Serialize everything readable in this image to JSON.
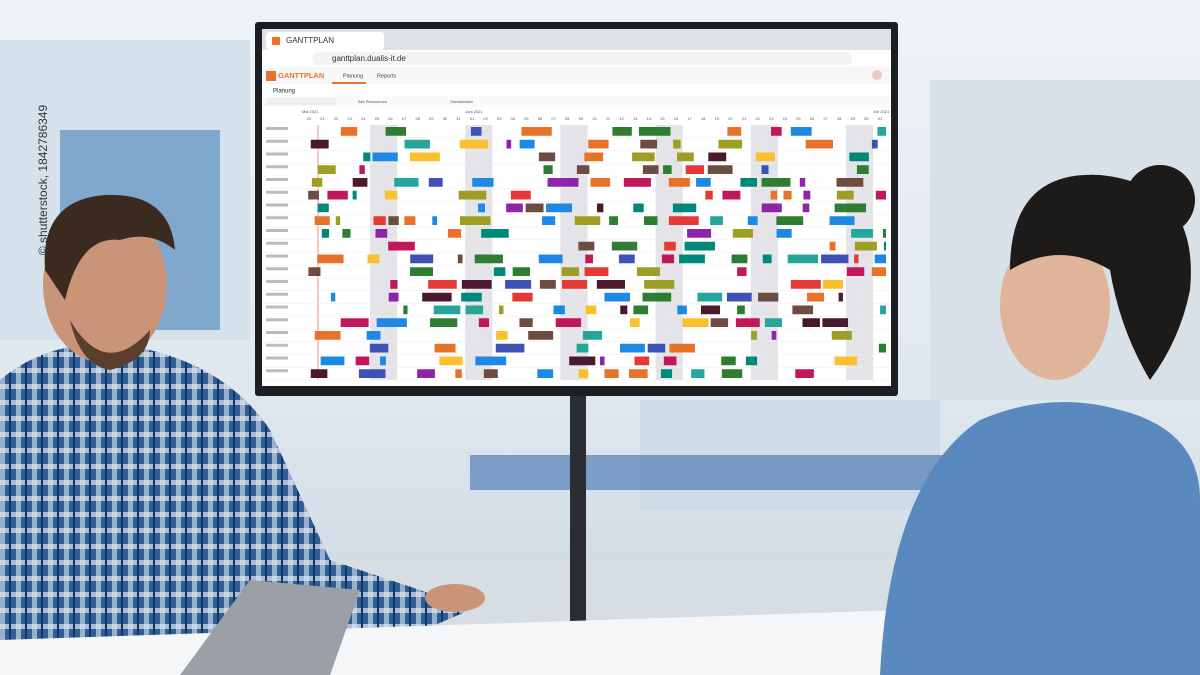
{
  "watermark": "© shutterstock, 1842786349",
  "browser": {
    "tab_title": "GANTTPLAN",
    "url": "ganttplan.dualis-it.de"
  },
  "app": {
    "logo": "GANTTPLAN",
    "nav": [
      "Planung",
      "Reports"
    ],
    "section": "Planung",
    "toolbar": [
      "Alle Ressourcen",
      "Stichtabellen"
    ],
    "timeline": {
      "months": [
        "Mai 2021",
        "Juni 2021",
        "Juli 2021"
      ],
      "days": [
        "20",
        "21",
        "22",
        "23",
        "24",
        "25",
        "26",
        "27",
        "28",
        "29",
        "30",
        "31",
        "01",
        "02",
        "03",
        "04",
        "05",
        "06",
        "07",
        "08",
        "09",
        "10",
        "11",
        "12",
        "13",
        "14",
        "15",
        "16",
        "17",
        "18",
        "19",
        "20",
        "21",
        "22",
        "23",
        "24",
        "25",
        "26",
        "27",
        "28",
        "29",
        "30",
        "01"
      ]
    }
  }
}
